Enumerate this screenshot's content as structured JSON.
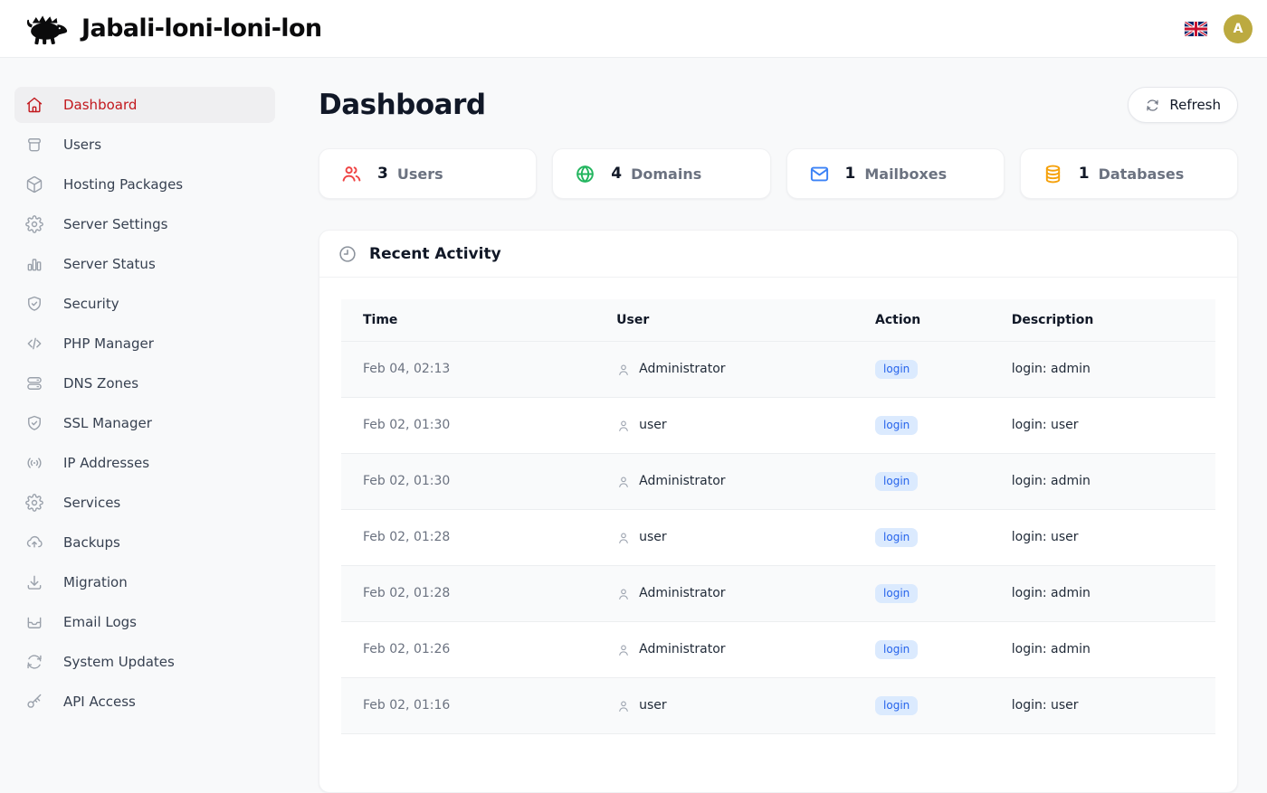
{
  "app": {
    "title": "Jabali-loni-loni-lon",
    "logo_icon": "boar-icon",
    "language_flag_icon": "uk-flag-icon",
    "avatar_label": "A",
    "avatar_color": "#bcaa40"
  },
  "sidebar": {
    "active_color": "#c2181d",
    "items": [
      {
        "label": "Dashboard",
        "icon": "home-icon",
        "active": true
      },
      {
        "label": "Users",
        "icon": "archive-box-icon"
      },
      {
        "label": "Hosting Packages",
        "icon": "package-icon"
      },
      {
        "label": "Server Settings",
        "icon": "gear-icon"
      },
      {
        "label": "Server Status",
        "icon": "bar-chart-icon"
      },
      {
        "label": "Security",
        "icon": "shield-check-icon"
      },
      {
        "label": "PHP Manager",
        "icon": "code-icon"
      },
      {
        "label": "DNS Zones",
        "icon": "server-stack-icon"
      },
      {
        "label": "SSL Manager",
        "icon": "shield-check-icon"
      },
      {
        "label": "IP Addresses",
        "icon": "broadcast-icon"
      },
      {
        "label": "Services",
        "icon": "gear-icon"
      },
      {
        "label": "Backups",
        "icon": "cloud-upload-icon"
      },
      {
        "label": "Migration",
        "icon": "download-icon"
      },
      {
        "label": "Email Logs",
        "icon": "inbox-icon"
      },
      {
        "label": "System Updates",
        "icon": "sync-icon"
      },
      {
        "label": "API Access",
        "icon": "key-icon"
      }
    ]
  },
  "page": {
    "title": "Dashboard",
    "refresh_button": "Refresh",
    "refresh_icon": "refresh-icon"
  },
  "stats": [
    {
      "value": "3",
      "label": "Users",
      "icon": "users-icon",
      "color": "#ef4444"
    },
    {
      "value": "4",
      "label": "Domains",
      "icon": "globe-icon",
      "color": "#22b55e"
    },
    {
      "value": "1",
      "label": "Mailboxes",
      "icon": "mail-icon",
      "color": "#3b82f6"
    },
    {
      "value": "1",
      "label": "Databases",
      "icon": "database-icon",
      "color": "#f5a10b"
    }
  ],
  "activity": {
    "title": "Recent Activity",
    "icon": "clock-icon",
    "user_icon": "person-icon",
    "columns": [
      "Time",
      "User",
      "Action",
      "Description"
    ],
    "badge_colors": {
      "bg": "#dbeafe",
      "text": "#2563eb"
    },
    "rows": [
      {
        "time": "Feb 04, 02:13",
        "user": "Administrator",
        "action": "login",
        "description": "login: admin"
      },
      {
        "time": "Feb 02, 01:30",
        "user": "user",
        "action": "login",
        "description": "login: user"
      },
      {
        "time": "Feb 02, 01:30",
        "user": "Administrator",
        "action": "login",
        "description": "login: admin"
      },
      {
        "time": "Feb 02, 01:28",
        "user": "user",
        "action": "login",
        "description": "login: user"
      },
      {
        "time": "Feb 02, 01:28",
        "user": "Administrator",
        "action": "login",
        "description": "login: admin"
      },
      {
        "time": "Feb 02, 01:26",
        "user": "Administrator",
        "action": "login",
        "description": "login: admin"
      },
      {
        "time": "Feb 02, 01:16",
        "user": "user",
        "action": "login",
        "description": "login: user"
      },
      {
        "time": "",
        "user": "",
        "action": "",
        "description": ""
      }
    ]
  }
}
